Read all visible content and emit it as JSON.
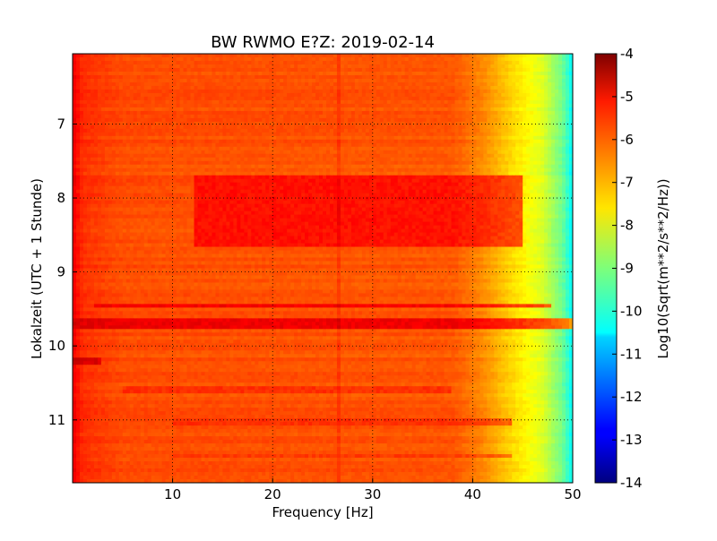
{
  "chart_data": {
    "type": "heatmap",
    "title": "BW RWMO E?Z: 2019-02-14",
    "xlabel": "Frequency [Hz]",
    "ylabel": "Lokalzeit (UTC + 1 Stunde)",
    "xlim": [
      0,
      50
    ],
    "ylim": [
      6.05,
      11.85
    ],
    "y_inverted": true,
    "x_ticks": [
      10,
      20,
      30,
      40,
      50
    ],
    "y_ticks": [
      7,
      8,
      9,
      10,
      11
    ],
    "grid": true,
    "colormap": "jet",
    "colorbar": {
      "label": "Log10(Sqrt(m**2/s**2/Hz))",
      "vmin": -14,
      "vmax": -4,
      "ticks": [
        -4,
        -5,
        -6,
        -7,
        -8,
        -9,
        -10,
        -11,
        -12,
        -13,
        -14
      ]
    },
    "bands": [
      {
        "t_start": 7.7,
        "t_end": 8.68,
        "f_start": 12,
        "f_end": 45,
        "level": -5.4
      },
      {
        "t_start": 9.42,
        "t_end": 9.5,
        "f_start": 2,
        "f_end": 48,
        "level": -5.2
      },
      {
        "t_start": 9.62,
        "t_end": 9.78,
        "f_start": 0,
        "f_end": 50,
        "level": -5.1
      },
      {
        "t_start": 10.18,
        "t_end": 10.24,
        "f_start": 0,
        "f_end": 3,
        "level": -5.0
      },
      {
        "t_start": 10.56,
        "t_end": 10.62,
        "f_start": 5,
        "f_end": 38,
        "level": -5.7
      },
      {
        "t_start": 11.0,
        "t_end": 11.1,
        "f_start": 10,
        "f_end": 44,
        "level": -5.7
      },
      {
        "t_start": 11.45,
        "t_end": 11.52,
        "f_start": 10,
        "f_end": 44,
        "level": -5.8
      }
    ],
    "spectral_profile": [
      {
        "f": 0,
        "level": -5.1
      },
      {
        "f": 1,
        "level": -5.7
      },
      {
        "f": 5,
        "level": -6.0
      },
      {
        "f": 38,
        "level": -6.1
      },
      {
        "f": 41,
        "level": -6.6
      },
      {
        "f": 44,
        "level": -7.4
      },
      {
        "f": 47,
        "level": -8.1
      },
      {
        "f": 49,
        "level": -9.2
      },
      {
        "f": 50,
        "level": -10.3
      }
    ],
    "persistent_line_hz": 26.5
  }
}
